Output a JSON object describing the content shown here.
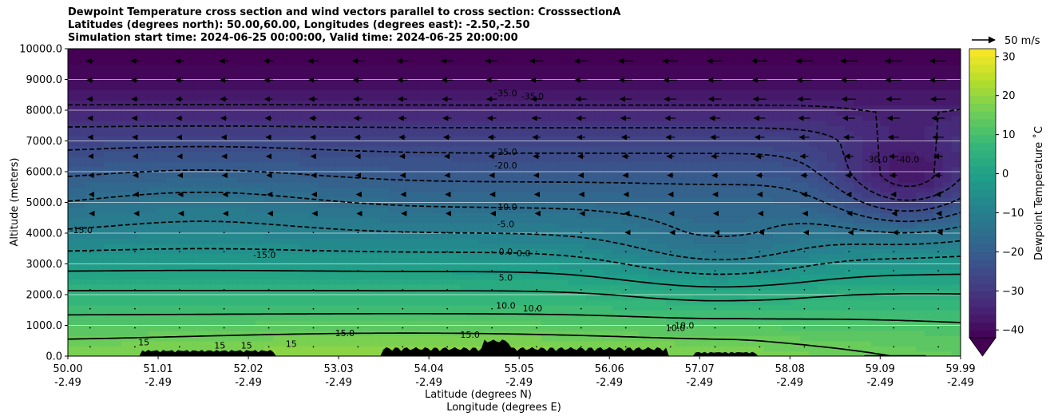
{
  "chart_data": {
    "type": "heatmap",
    "title_lines": [
      "Dewpoint Temperature cross section and wind vectors parallel to cross section: CrosssectionA",
      "Latitudes (degrees north): 50.00,60.00, Longitudes (degrees east): -2.50,-2.50",
      "Simulation start time: 2024-06-25 00:00:00, Valid time: 2024-06-25 20:00:00"
    ],
    "xlabel_lines": [
      "Latitude (degrees N)",
      "Longitude (degrees E)"
    ],
    "ylabel": "Altitude (meters)",
    "xlim": [
      50.0,
      59.99
    ],
    "ylim": [
      0,
      10000
    ],
    "x_ticks": [
      {
        "lat": "50.00",
        "lon": "-2.49",
        "v": 50.0
      },
      {
        "lat": "51.01",
        "lon": "-2.49",
        "v": 51.01
      },
      {
        "lat": "52.02",
        "lon": "-2.49",
        "v": 52.02
      },
      {
        "lat": "53.03",
        "lon": "-2.49",
        "v": 53.03
      },
      {
        "lat": "54.04",
        "lon": "-2.49",
        "v": 54.04
      },
      {
        "lat": "55.05",
        "lon": "-2.49",
        "v": 55.05
      },
      {
        "lat": "56.06",
        "lon": "-2.49",
        "v": 56.06
      },
      {
        "lat": "57.07",
        "lon": "-2.49",
        "v": 57.07
      },
      {
        "lat": "58.08",
        "lon": "-2.49",
        "v": 58.08
      },
      {
        "lat": "59.09",
        "lon": "-2.49",
        "v": 59.09
      },
      {
        "lat": "59.99",
        "lon": "-2.49",
        "v": 59.99
      }
    ],
    "y_ticks": [
      {
        "label": "0.0",
        "v": 0
      },
      {
        "label": "1000.0",
        "v": 1000
      },
      {
        "label": "2000.0",
        "v": 2000
      },
      {
        "label": "3000.0",
        "v": 3000
      },
      {
        "label": "4000.0",
        "v": 4000
      },
      {
        "label": "5000.0",
        "v": 5000
      },
      {
        "label": "6000.0",
        "v": 6000
      },
      {
        "label": "7000.0",
        "v": 7000
      },
      {
        "label": "8000.0",
        "v": 8000
      },
      {
        "label": "9000.0",
        "v": 9000
      },
      {
        "label": "10000.0",
        "v": 10000
      }
    ],
    "grid": "horizontal",
    "colorbar": {
      "label": "Dewpoint Temperature $^\\circ$C",
      "label_display": "Dewpoint Temperature ˚C",
      "range": [
        -42,
        32
      ],
      "extend": "min",
      "ticks": [
        {
          "label": "30",
          "v": 30
        },
        {
          "label": "20",
          "v": 20
        },
        {
          "label": "10",
          "v": 10
        },
        {
          "label": "0",
          "v": 0
        },
        {
          "label": "−10",
          "v": -10
        },
        {
          "label": "−20",
          "v": -20
        },
        {
          "label": "−30",
          "v": -30
        },
        {
          "label": "−40",
          "v": -40
        }
      ],
      "colormap": "viridis"
    },
    "quiver_key": {
      "label": "50 m/s",
      "speed": 50
    },
    "field_profile": {
      "description_levels_m": [
        0,
        500,
        1000,
        2000,
        3000,
        4000,
        5000,
        6000,
        7000,
        8000,
        9000,
        10000
      ],
      "dewpoint_C": [
        17,
        15,
        12,
        6,
        -2,
        -10,
        -16,
        -22,
        -27,
        -34,
        -40,
        -44
      ]
    },
    "contours": [
      {
        "level": -35,
        "label": "-35.0",
        "dashed": true
      },
      {
        "level": -30,
        "label": "-30.0",
        "dashed": true
      },
      {
        "level": -25,
        "label": "-25.0",
        "dashed": true
      },
      {
        "level": -20,
        "label": "-20.0",
        "dashed": true
      },
      {
        "level": -15,
        "label": "-15.0",
        "dashed": true
      },
      {
        "level": -10,
        "label": "-10.0",
        "dashed": true
      },
      {
        "level": -5,
        "label": "-5.0",
        "dashed": true
      },
      {
        "level": 0,
        "label": "0.0",
        "dashed": false
      },
      {
        "level": 5,
        "label": "5.0",
        "dashed": false
      },
      {
        "level": 10,
        "label": "10.0",
        "dashed": false
      },
      {
        "level": 15,
        "label": "15.0",
        "dashed": false
      }
    ],
    "contour_labels": [
      {
        "text": "-35.0",
        "x": 54.9,
        "y": 8450
      },
      {
        "text": "-35.0",
        "x": 55.2,
        "y": 8350
      },
      {
        "text": "-25.0",
        "x": 54.9,
        "y": 6550
      },
      {
        "text": "-20.0",
        "x": 54.9,
        "y": 6100
      },
      {
        "text": "-30.0",
        "x": 59.05,
        "y": 6300
      },
      {
        "text": "-40.0",
        "x": 59.4,
        "y": 6300
      },
      {
        "text": "-15.0",
        "x": 50.15,
        "y": 4000
      },
      {
        "text": "-15.0",
        "x": 52.2,
        "y": 3200
      },
      {
        "text": "-10.0",
        "x": 54.9,
        "y": 4750
      },
      {
        "text": "-5.0",
        "x": 54.9,
        "y": 4200
      },
      {
        "text": "0.0",
        "x": 54.9,
        "y": 3300
      },
      {
        "text": "0.0",
        "x": 55.1,
        "y": 3250
      },
      {
        "text": "5.0",
        "x": 54.9,
        "y": 2450
      },
      {
        "text": "10.0",
        "x": 54.9,
        "y": 1550
      },
      {
        "text": "10.0",
        "x": 55.2,
        "y": 1450
      },
      {
        "text": "10.0",
        "x": 56.8,
        "y": 820
      },
      {
        "text": "10.0",
        "x": 56.9,
        "y": 900
      },
      {
        "text": "15.0",
        "x": 53.1,
        "y": 650
      },
      {
        "text": "15.0",
        "x": 54.5,
        "y": 600
      },
      {
        "text": "15",
        "x": 50.85,
        "y": 350
      },
      {
        "text": "15",
        "x": 51.7,
        "y": 250
      },
      {
        "text": "15",
        "x": 52.0,
        "y": 250
      },
      {
        "text": "15",
        "x": 52.5,
        "y": 300
      }
    ]
  }
}
